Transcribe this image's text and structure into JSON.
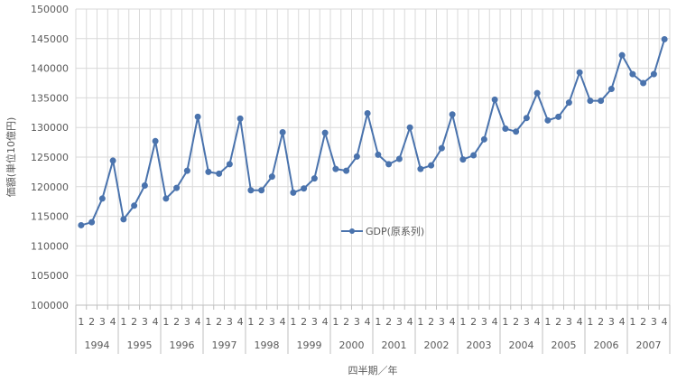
{
  "chart_data": {
    "type": "line",
    "title": "",
    "xlabel": "四半期／年",
    "ylabel": "価額(単位10億円)",
    "ylim": [
      100000,
      150000
    ],
    "ytick_step": 5000,
    "years": [
      "1994",
      "1995",
      "1996",
      "1997",
      "1998",
      "1999",
      "2000",
      "2001",
      "2002",
      "2003",
      "2004",
      "2005",
      "2006",
      "2007"
    ],
    "quarters": [
      "1",
      "2",
      "3",
      "4"
    ],
    "legend_position": "center",
    "grid": true,
    "series": [
      {
        "name": "GDP(原系列)",
        "color": "#4a73ad",
        "values": [
          113500,
          114000,
          118000,
          124400,
          114500,
          116800,
          120200,
          127700,
          118000,
          119800,
          122700,
          131800,
          122500,
          122200,
          123800,
          131500,
          119400,
          119400,
          121700,
          129200,
          119000,
          119700,
          121400,
          129100,
          123000,
          122700,
          125100,
          132400,
          125400,
          123800,
          124700,
          130000,
          123000,
          123600,
          126500,
          132200,
          124600,
          125300,
          128000,
          134700,
          129800,
          129300,
          131600,
          135800,
          131200,
          131800,
          134200,
          139300,
          134500,
          134500,
          136500,
          142200,
          139000,
          137500,
          139000,
          144900
        ]
      }
    ]
  }
}
